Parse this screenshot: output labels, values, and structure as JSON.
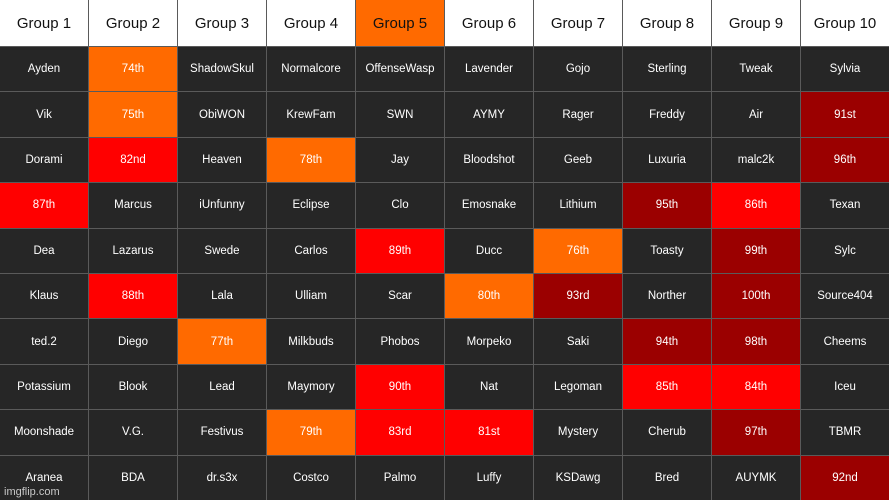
{
  "colors": {
    "dark": "#262626",
    "header": "#ffffff",
    "orange": "#ff6a00",
    "red": "#ff0000",
    "darkred": "#9b0000"
  },
  "headers": [
    {
      "label": "Group 1",
      "style": "header"
    },
    {
      "label": "Group 2",
      "style": "header"
    },
    {
      "label": "Group 3",
      "style": "header"
    },
    {
      "label": "Group 4",
      "style": "header"
    },
    {
      "label": "Group 5",
      "style": "orange"
    },
    {
      "label": "Group 6",
      "style": "header"
    },
    {
      "label": "Group 7",
      "style": "header"
    },
    {
      "label": "Group 8",
      "style": "header"
    },
    {
      "label": "Group 9",
      "style": "header"
    },
    {
      "label": "Group 10",
      "style": "header"
    }
  ],
  "rows": [
    [
      {
        "text": "Ayden",
        "style": "dark"
      },
      {
        "text": "74th",
        "style": "orange"
      },
      {
        "text": "ShadowSkul",
        "style": "dark"
      },
      {
        "text": "Normalcore",
        "style": "dark"
      },
      {
        "text": "OffenseWasp",
        "style": "dark"
      },
      {
        "text": "Lavender",
        "style": "dark"
      },
      {
        "text": "Gojo",
        "style": "dark"
      },
      {
        "text": "Sterling",
        "style": "dark"
      },
      {
        "text": "Tweak",
        "style": "dark"
      },
      {
        "text": "Sylvia",
        "style": "dark"
      }
    ],
    [
      {
        "text": "Vik",
        "style": "dark"
      },
      {
        "text": "75th",
        "style": "orange"
      },
      {
        "text": "ObiWON",
        "style": "dark"
      },
      {
        "text": "KrewFam",
        "style": "dark"
      },
      {
        "text": "SWN",
        "style": "dark"
      },
      {
        "text": "AYMY",
        "style": "dark"
      },
      {
        "text": "Rager",
        "style": "dark"
      },
      {
        "text": "Freddy",
        "style": "dark"
      },
      {
        "text": "Air",
        "style": "dark"
      },
      {
        "text": "91st",
        "style": "darkred"
      }
    ],
    [
      {
        "text": "Dorami",
        "style": "dark"
      },
      {
        "text": "82nd",
        "style": "red"
      },
      {
        "text": "Heaven",
        "style": "dark"
      },
      {
        "text": "78th",
        "style": "orange"
      },
      {
        "text": "Jay",
        "style": "dark"
      },
      {
        "text": "Bloodshot",
        "style": "dark"
      },
      {
        "text": "Geeb",
        "style": "dark"
      },
      {
        "text": "Luxuria",
        "style": "dark"
      },
      {
        "text": "malc2k",
        "style": "dark"
      },
      {
        "text": "96th",
        "style": "darkred"
      }
    ],
    [
      {
        "text": "87th",
        "style": "red"
      },
      {
        "text": "Marcus",
        "style": "dark"
      },
      {
        "text": "iUnfunny",
        "style": "dark"
      },
      {
        "text": "Eclipse",
        "style": "dark"
      },
      {
        "text": "Clo",
        "style": "dark"
      },
      {
        "text": "Emosnake",
        "style": "dark"
      },
      {
        "text": "Lithium",
        "style": "dark"
      },
      {
        "text": "95th",
        "style": "darkred"
      },
      {
        "text": "86th",
        "style": "red"
      },
      {
        "text": "Texan",
        "style": "dark"
      }
    ],
    [
      {
        "text": "Dea",
        "style": "dark"
      },
      {
        "text": "Lazarus",
        "style": "dark"
      },
      {
        "text": "Swede",
        "style": "dark"
      },
      {
        "text": "Carlos",
        "style": "dark"
      },
      {
        "text": "89th",
        "style": "red"
      },
      {
        "text": "Ducc",
        "style": "dark"
      },
      {
        "text": "76th",
        "style": "orange"
      },
      {
        "text": "Toasty",
        "style": "dark"
      },
      {
        "text": "99th",
        "style": "darkred"
      },
      {
        "text": "Sylc",
        "style": "dark"
      }
    ],
    [
      {
        "text": "Klaus",
        "style": "dark"
      },
      {
        "text": "88th",
        "style": "red"
      },
      {
        "text": "Lala",
        "style": "dark"
      },
      {
        "text": "Ulliam",
        "style": "dark"
      },
      {
        "text": "Scar",
        "style": "dark"
      },
      {
        "text": "80th",
        "style": "orange"
      },
      {
        "text": "93rd",
        "style": "darkred"
      },
      {
        "text": "Norther",
        "style": "dark"
      },
      {
        "text": "100th",
        "style": "darkred"
      },
      {
        "text": "Source404",
        "style": "dark"
      }
    ],
    [
      {
        "text": "ted.2",
        "style": "dark"
      },
      {
        "text": "Diego",
        "style": "dark"
      },
      {
        "text": "77th",
        "style": "orange"
      },
      {
        "text": "Milkbuds",
        "style": "dark"
      },
      {
        "text": "Phobos",
        "style": "dark"
      },
      {
        "text": "Morpeko",
        "style": "dark"
      },
      {
        "text": "Saki",
        "style": "dark"
      },
      {
        "text": "94th",
        "style": "darkred"
      },
      {
        "text": "98th",
        "style": "darkred"
      },
      {
        "text": "Cheems",
        "style": "dark"
      }
    ],
    [
      {
        "text": "Potassium",
        "style": "dark"
      },
      {
        "text": "Blook",
        "style": "dark"
      },
      {
        "text": "Lead",
        "style": "dark"
      },
      {
        "text": "Maymory",
        "style": "dark"
      },
      {
        "text": "90th",
        "style": "red"
      },
      {
        "text": "Nat",
        "style": "dark"
      },
      {
        "text": "Legoman",
        "style": "dark"
      },
      {
        "text": "85th",
        "style": "red"
      },
      {
        "text": "84th",
        "style": "red"
      },
      {
        "text": "Iceu",
        "style": "dark"
      }
    ],
    [
      {
        "text": "Moonshade",
        "style": "dark"
      },
      {
        "text": "V.G.",
        "style": "dark"
      },
      {
        "text": "Festivus",
        "style": "dark"
      },
      {
        "text": "79th",
        "style": "orange"
      },
      {
        "text": "83rd",
        "style": "red"
      },
      {
        "text": "81st",
        "style": "red"
      },
      {
        "text": "Mystery",
        "style": "dark"
      },
      {
        "text": "Cherub",
        "style": "dark"
      },
      {
        "text": "97th",
        "style": "darkred"
      },
      {
        "text": "TBMR",
        "style": "dark"
      }
    ],
    [
      {
        "text": "Aranea",
        "style": "dark"
      },
      {
        "text": "BDA",
        "style": "dark"
      },
      {
        "text": "dr.s3x",
        "style": "dark"
      },
      {
        "text": "Costco",
        "style": "dark"
      },
      {
        "text": "Palmo",
        "style": "dark"
      },
      {
        "text": "Luffy",
        "style": "dark"
      },
      {
        "text": "KSDawg",
        "style": "dark"
      },
      {
        "text": "Bred",
        "style": "dark"
      },
      {
        "text": "AUYMK",
        "style": "dark"
      },
      {
        "text": "92nd",
        "style": "darkred"
      }
    ]
  ],
  "watermark": "imgflip.com"
}
